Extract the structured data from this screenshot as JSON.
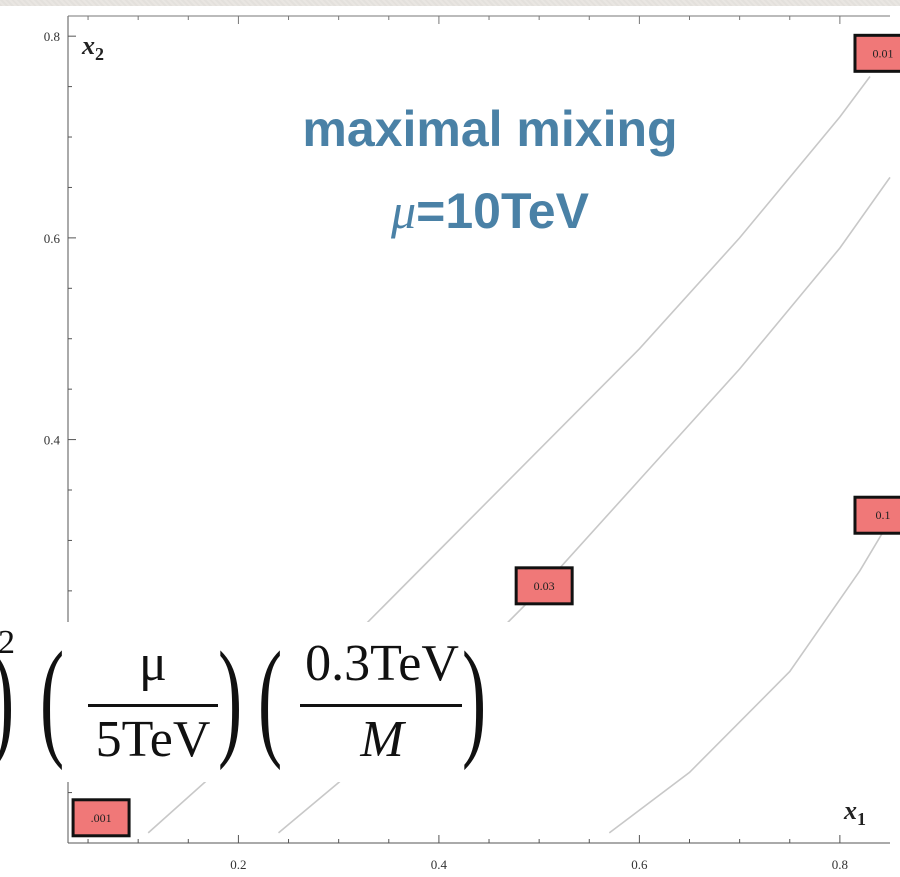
{
  "chart_data": {
    "type": "line",
    "title_lines": [
      "maximal mixing",
      "μ=10TeV"
    ],
    "xlabel": "x",
    "xlabel_sub": "1",
    "ylabel": "x",
    "ylabel_sub": "2",
    "xlim": [
      0.03,
      0.85
    ],
    "ylim": [
      0.0,
      0.82
    ],
    "xticks": [
      0.2,
      0.4,
      0.6,
      0.8
    ],
    "yticks": [
      0.4,
      0.6,
      0.8
    ],
    "xtick_labels": [
      "0.2",
      "0.4",
      "0.6",
      "0.8"
    ],
    "ytick_labels": [
      "0.4",
      "0.6",
      "0.8"
    ],
    "grid": false,
    "series": [
      {
        "label": "0.001",
        "points": [
          [
            0.11,
            0.01
          ],
          [
            0.2,
            0.09
          ],
          [
            0.3,
            0.19
          ],
          [
            0.4,
            0.29
          ],
          [
            0.5,
            0.39
          ],
          [
            0.6,
            0.49
          ],
          [
            0.7,
            0.6
          ],
          [
            0.8,
            0.72
          ],
          [
            0.83,
            0.76
          ]
        ]
      },
      {
        "label": "0.03",
        "points": [
          [
            0.24,
            0.01
          ],
          [
            0.3,
            0.06
          ],
          [
            0.4,
            0.15
          ],
          [
            0.5,
            0.25
          ],
          [
            0.6,
            0.36
          ],
          [
            0.7,
            0.47
          ],
          [
            0.8,
            0.59
          ],
          [
            0.85,
            0.66
          ]
        ]
      },
      {
        "label": "0.1",
        "points": [
          [
            0.57,
            0.01
          ],
          [
            0.65,
            0.07
          ],
          [
            0.75,
            0.17
          ],
          [
            0.82,
            0.27
          ],
          [
            0.85,
            0.32
          ]
        ]
      }
    ],
    "contour_labels": [
      {
        "text": "0.01",
        "x": 0.843,
        "y": 0.783
      },
      {
        "text": "0.1",
        "x": 0.843,
        "y": 0.325
      },
      {
        "text": "0.03",
        "x": 0.505,
        "y": 0.255
      },
      {
        "text": ".001",
        "x": 0.063,
        "y": 0.025
      }
    ]
  },
  "formula": {
    "frac1_num": "μ",
    "frac1_den": "5TeV",
    "frac2_num": "0.3TeV",
    "frac2_den": "M",
    "leading_exponent": "2"
  },
  "colors": {
    "line": "#c8c8c8",
    "label_fill": "#f07878",
    "title": "#4a81a6"
  }
}
